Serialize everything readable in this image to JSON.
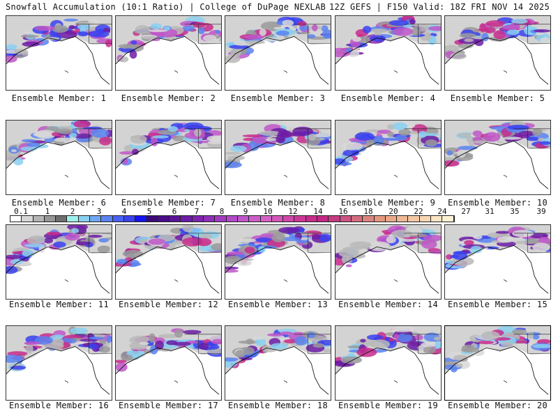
{
  "header": {
    "title_left": "Snowfall Accumulation (10:1 Ratio) | College of DuPage NEXLAB",
    "title_right": "12Z GEFS | F150 Valid: 18Z FRI NOV 14 2025"
  },
  "panels": [
    {
      "label": "Ensemble Member: 1"
    },
    {
      "label": "Ensemble Member: 2"
    },
    {
      "label": "Ensemble Member: 3"
    },
    {
      "label": "Ensemble Member: 4"
    },
    {
      "label": "Ensemble Member: 5"
    },
    {
      "label": "Ensemble Member: 6"
    },
    {
      "label": "Ensemble Member: 7"
    },
    {
      "label": "Ensemble Member: 8"
    },
    {
      "label": "Ensemble Member: 9"
    },
    {
      "label": "Ensemble Member: 10"
    },
    {
      "label": "Ensemble Member: 11"
    },
    {
      "label": "Ensemble Member: 12"
    },
    {
      "label": "Ensemble Member: 13"
    },
    {
      "label": "Ensemble Member: 14"
    },
    {
      "label": "Ensemble Member: 15"
    },
    {
      "label": "Ensemble Member: 16"
    },
    {
      "label": "Ensemble Member: 17"
    },
    {
      "label": "Ensemble Member: 18"
    },
    {
      "label": "Ensemble Member: 19"
    },
    {
      "label": "Ensemble Member: 20"
    }
  ],
  "colorbar": {
    "labels": [
      "0.1",
      "1",
      "2",
      "3",
      "4",
      "5",
      "6",
      "7",
      "8",
      "9",
      "10",
      "12",
      "14",
      "16",
      "18",
      "20",
      "22",
      "24",
      "27",
      "31",
      "35",
      "39"
    ],
    "colors": [
      "#ffffff",
      "#d6d6d6",
      "#b4b4b4",
      "#969696",
      "#6e6e6e",
      "#9ff0ea",
      "#8ad0f0",
      "#6fa6f2",
      "#5a82f0",
      "#4862f2",
      "#3a42ee",
      "#1414f0",
      "#3c0a78",
      "#4a0c8a",
      "#5c1496",
      "#6c1ca4",
      "#7e24b0",
      "#8e30b8",
      "#a03cc0",
      "#b04ac8",
      "#c056c8",
      "#cc5ec8",
      "#d462c4",
      "#d456b8",
      "#d048a8",
      "#cc3898",
      "#c82c8c",
      "#c42884",
      "#c43c80",
      "#cc5484",
      "#d46c80",
      "#dc8480",
      "#e49880",
      "#eaa888",
      "#eeb894",
      "#f2c8a4",
      "#f6d6b4",
      "#fae4c4",
      "#fdf0d4"
    ]
  }
}
